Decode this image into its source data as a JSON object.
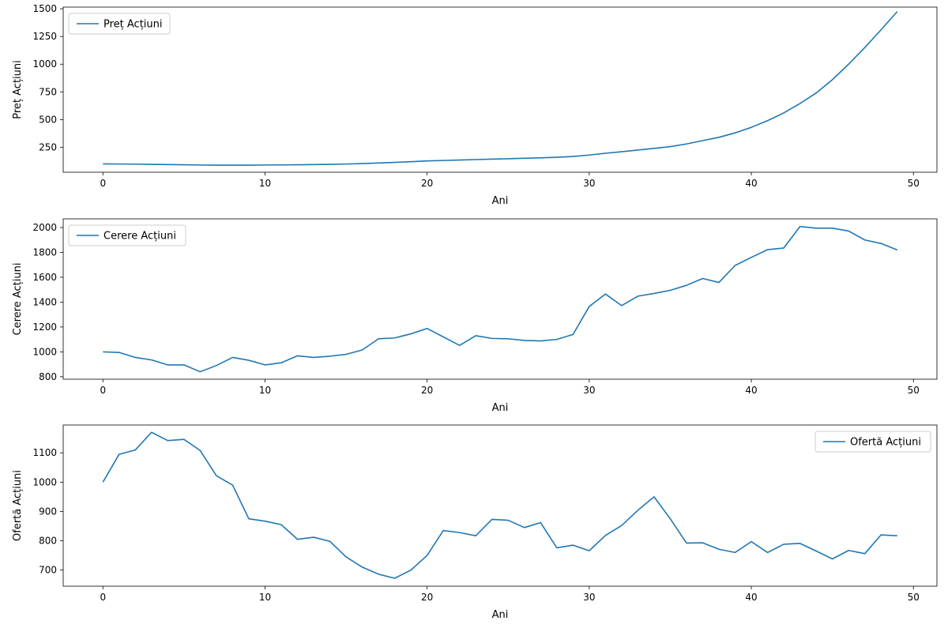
{
  "chart_data": [
    {
      "type": "line",
      "xlabel": "Ani",
      "ylabel": "Preț Acțiuni",
      "xlim": [
        -2.45,
        51.45
      ],
      "ylim": [
        25,
        1515
      ],
      "xticks": [
        0,
        10,
        20,
        30,
        40,
        50
      ],
      "yticks": [
        250,
        500,
        750,
        1000,
        1250,
        1500
      ],
      "legend": "top-left",
      "grid": false,
      "color": "#1f77b4",
      "series": [
        {
          "name": "Preț Acțiuni",
          "x": [
            0,
            1,
            2,
            3,
            4,
            5,
            6,
            7,
            8,
            9,
            10,
            11,
            12,
            13,
            14,
            15,
            16,
            17,
            18,
            19,
            20,
            21,
            22,
            23,
            24,
            25,
            26,
            27,
            28,
            29,
            30,
            31,
            32,
            33,
            34,
            35,
            36,
            37,
            38,
            39,
            40,
            41,
            42,
            43,
            44,
            45,
            46,
            47,
            48,
            49
          ],
          "y": [
            100,
            99,
            98,
            96,
            94,
            92,
            90,
            89,
            89,
            89,
            90,
            91,
            92,
            94,
            96,
            99,
            103,
            108,
            114,
            120,
            127,
            131,
            135,
            139,
            143,
            147,
            151,
            155,
            160,
            167,
            180,
            196,
            210,
            225,
            240,
            256,
            280,
            310,
            340,
            380,
            430,
            490,
            560,
            645,
            740,
            860,
            1000,
            1150,
            1310,
            1475
          ]
        }
      ]
    },
    {
      "type": "line",
      "xlabel": "Ani",
      "ylabel": "Cerere Acțiuni",
      "xlim": [
        -2.45,
        51.45
      ],
      "ylim": [
        780,
        2070
      ],
      "xticks": [
        0,
        10,
        20,
        30,
        40,
        50
      ],
      "yticks": [
        800,
        1000,
        1200,
        1400,
        1600,
        1800,
        2000
      ],
      "legend": "top-left",
      "grid": false,
      "color": "#1f77b4",
      "series": [
        {
          "name": "Cerere Acțiuni",
          "x": [
            0,
            1,
            2,
            3,
            4,
            5,
            6,
            7,
            8,
            9,
            10,
            11,
            12,
            13,
            14,
            15,
            16,
            17,
            18,
            19,
            20,
            21,
            22,
            23,
            24,
            25,
            26,
            27,
            28,
            29,
            30,
            31,
            32,
            33,
            34,
            35,
            36,
            37,
            38,
            39,
            40,
            41,
            42,
            43,
            44,
            45,
            46,
            47,
            48,
            49
          ],
          "y": [
            1000,
            995,
            955,
            935,
            895,
            895,
            840,
            890,
            955,
            932,
            895,
            912,
            968,
            955,
            965,
            980,
            1015,
            1105,
            1112,
            1145,
            1188,
            1120,
            1052,
            1130,
            1108,
            1105,
            1092,
            1088,
            1100,
            1140,
            1365,
            1465,
            1372,
            1448,
            1470,
            1495,
            1535,
            1590,
            1558,
            1695,
            1760,
            1822,
            1835,
            2008,
            1995,
            1995,
            1972,
            1900,
            1872,
            1820
          ]
        }
      ]
    },
    {
      "type": "line",
      "xlabel": "Ani",
      "ylabel": "Ofertă Acțiuni",
      "xlim": [
        -2.45,
        51.45
      ],
      "ylim": [
        645,
        1195
      ],
      "xticks": [
        0,
        10,
        20,
        30,
        40,
        50
      ],
      "yticks": [
        700,
        800,
        900,
        1000,
        1100
      ],
      "legend": "top-right",
      "grid": false,
      "color": "#1f77b4",
      "series": [
        {
          "name": "Ofertă Acțiuni",
          "x": [
            0,
            1,
            2,
            3,
            4,
            5,
            6,
            7,
            8,
            9,
            10,
            11,
            12,
            13,
            14,
            15,
            16,
            17,
            18,
            19,
            20,
            21,
            22,
            23,
            24,
            25,
            26,
            27,
            28,
            29,
            30,
            31,
            32,
            33,
            34,
            35,
            36,
            37,
            38,
            39,
            40,
            41,
            42,
            43,
            44,
            45,
            46,
            47,
            48,
            49
          ],
          "y": [
            1000,
            1095,
            1110,
            1170,
            1142,
            1146,
            1108,
            1022,
            990,
            875,
            867,
            855,
            805,
            812,
            798,
            745,
            710,
            686,
            672,
            700,
            750,
            835,
            828,
            817,
            873,
            870,
            845,
            862,
            776,
            785,
            766,
            818,
            852,
            904,
            950,
            875,
            792,
            793,
            771,
            760,
            797,
            760,
            788,
            791,
            765,
            738,
            767,
            756,
            820,
            817
          ]
        }
      ]
    }
  ]
}
